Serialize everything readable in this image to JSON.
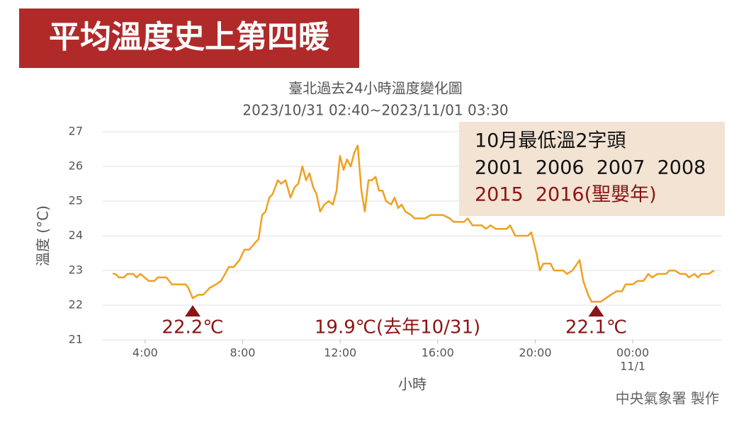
{
  "banner": "平均溫度史上第四暖",
  "credit": "中央氣象署 製作",
  "info_box": {
    "lines": [
      {
        "text": "10月最低溫2字頭",
        "color": "#111111"
      },
      {
        "text": "2001  2006  2007  2008",
        "color": "#111111"
      },
      {
        "text": "2015  2016(聖嬰年)",
        "color": "#8b1414"
      }
    ]
  },
  "chart_data": {
    "type": "line",
    "title": "臺北過去24小時溫度變化圖",
    "subtitle": "2023/10/31 02:40~2023/11/01 03:30",
    "x_label": "小時",
    "y_label": "溫度 (°C)",
    "color": "#f0a020",
    "grid": true,
    "xlim": [
      2.26,
      27.63
    ],
    "ylim": [
      21,
      27
    ],
    "yticks": [
      21,
      22,
      23,
      24,
      25,
      26,
      27
    ],
    "xticks": [
      {
        "value": 4,
        "label": "4:00"
      },
      {
        "value": 8,
        "label": "8:00"
      },
      {
        "value": 12,
        "label": "12:00"
      },
      {
        "value": 16,
        "label": "16:00"
      },
      {
        "value": 20,
        "label": "20:00"
      },
      {
        "value": 24,
        "label": "00:00"
      }
    ],
    "x_date_label": {
      "value": 24,
      "label": "11/1"
    },
    "x": [
      2.67,
      2.78,
      2.92,
      3.13,
      3.27,
      3.51,
      3.65,
      3.8,
      4.15,
      4.38,
      4.52,
      4.87,
      5.1,
      5.66,
      5.77,
      5.95,
      6.18,
      6.38,
      6.65,
      6.91,
      7.11,
      7.28,
      7.43,
      7.63,
      7.87,
      8.07,
      8.27,
      8.51,
      8.65,
      8.8,
      8.94,
      9.09,
      9.23,
      9.44,
      9.58,
      9.76,
      9.96,
      10.13,
      10.28,
      10.45,
      10.6,
      10.74,
      10.89,
      11.03,
      11.18,
      11.35,
      11.53,
      11.7,
      11.85,
      11.99,
      12.14,
      12.28,
      12.43,
      12.58,
      12.72,
      12.87,
      13.01,
      13.16,
      13.3,
      13.45,
      13.59,
      13.74,
      13.88,
      14.09,
      14.23,
      14.38,
      14.52,
      14.67,
      14.9,
      15.05,
      15.34,
      15.48,
      15.72,
      16.21,
      16.5,
      16.65,
      17.08,
      17.23,
      17.43,
      17.81,
      17.98,
      18.16,
      18.39,
      18.83,
      18.97,
      19.18,
      19.7,
      19.84,
      20.05,
      20.19,
      20.34,
      20.63,
      20.77,
      21.15,
      21.3,
      21.53,
      21.82,
      21.97,
      22.17,
      22.31,
      22.69,
      22.9,
      23.1,
      23.33,
      23.56,
      23.71,
      24.0,
      24.2,
      24.44,
      24.64,
      24.79,
      25.02,
      25.37,
      25.51,
      25.72,
      25.95,
      26.18,
      26.3,
      26.53,
      26.67,
      26.82,
      27.11,
      27.34
    ],
    "values": [
      22.9,
      22.9,
      22.8,
      22.8,
      22.9,
      22.9,
      22.8,
      22.9,
      22.7,
      22.7,
      22.8,
      22.8,
      22.6,
      22.6,
      22.5,
      22.2,
      22.3,
      22.3,
      22.5,
      22.6,
      22.7,
      22.9,
      23.1,
      23.1,
      23.3,
      23.6,
      23.6,
      23.8,
      23.9,
      24.6,
      24.7,
      25.1,
      25.2,
      25.6,
      25.5,
      25.6,
      25.1,
      25.4,
      25.5,
      26.0,
      25.6,
      25.8,
      25.4,
      25.2,
      24.7,
      24.9,
      25.0,
      24.9,
      25.3,
      26.3,
      25.9,
      26.2,
      26.0,
      26.4,
      26.6,
      25.3,
      24.7,
      25.6,
      25.6,
      25.7,
      25.3,
      25.3,
      25.0,
      24.9,
      25.1,
      24.8,
      24.9,
      24.7,
      24.6,
      24.5,
      24.5,
      24.5,
      24.6,
      24.6,
      24.5,
      24.4,
      24.4,
      24.5,
      24.3,
      24.3,
      24.2,
      24.3,
      24.2,
      24.2,
      24.3,
      24.0,
      24.0,
      24.1,
      23.5,
      23.0,
      23.2,
      23.2,
      23.0,
      23.0,
      22.9,
      23.0,
      23.3,
      22.7,
      22.3,
      22.1,
      22.1,
      22.2,
      22.3,
      22.4,
      22.4,
      22.6,
      22.6,
      22.7,
      22.7,
      22.9,
      22.8,
      22.9,
      22.9,
      23.0,
      23.0,
      22.9,
      22.9,
      22.8,
      22.9,
      22.8,
      22.9,
      22.9,
      23.0
    ],
    "annotations": [
      {
        "text": "22.2℃",
        "x": 5.95,
        "y": 22,
        "marker": true
      },
      {
        "text": "19.9℃(去年10/31)",
        "x": 14.35,
        "y": 22,
        "marker": false
      },
      {
        "text": "22.1℃",
        "x": 22.5,
        "y": 22,
        "marker": true
      }
    ]
  }
}
